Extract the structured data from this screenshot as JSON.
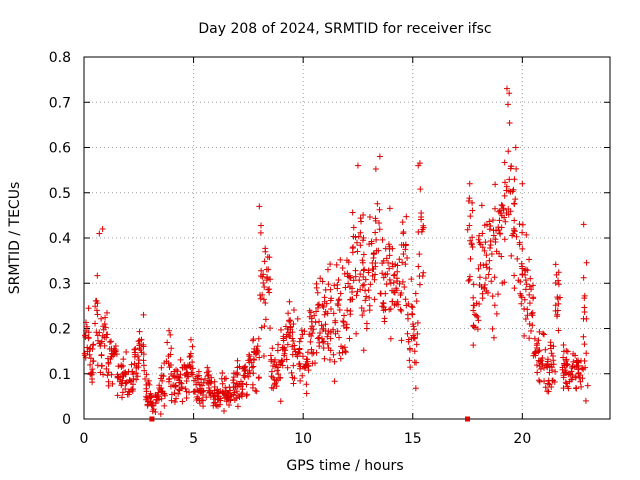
{
  "chart_data": {
    "type": "scatter",
    "title": "Day 208 of 2024, SRMTID for receiver ifsc",
    "xlabel": "GPS time / hours",
    "ylabel": "SRMTID / TECUs",
    "xlim": [
      0,
      24
    ],
    "ylim": [
      0,
      0.8
    ],
    "x_ticks": [
      0,
      5,
      10,
      15,
      20
    ],
    "x_tick_labels": [
      "0",
      "5",
      "10",
      "15",
      "20"
    ],
    "y_ticks": [
      0,
      0.1,
      0.2,
      0.3,
      0.4,
      0.5,
      0.6,
      0.7,
      0.8
    ],
    "y_tick_labels": [
      "0",
      "0.1",
      "0.2",
      "0.3",
      "0.4",
      "0.5",
      "0.6",
      "0.7",
      "0.8"
    ],
    "grid": true,
    "marker": "plus",
    "color": "#e00000",
    "envelope": [
      [
        0.0,
        0.16,
        0.06
      ],
      [
        0.25,
        0.12,
        0.06
      ],
      [
        0.5,
        0.2,
        0.09
      ],
      [
        0.75,
        0.18,
        0.07
      ],
      [
        1.0,
        0.15,
        0.06
      ],
      [
        1.25,
        0.14,
        0.05
      ],
      [
        1.5,
        0.1,
        0.04
      ],
      [
        1.75,
        0.1,
        0.04
      ],
      [
        2.0,
        0.08,
        0.03
      ],
      [
        2.25,
        0.12,
        0.04
      ],
      [
        2.5,
        0.16,
        0.05
      ],
      [
        2.75,
        0.06,
        0.03
      ],
      [
        3.0,
        0.04,
        0.02
      ],
      [
        3.25,
        0.05,
        0.03
      ],
      [
        3.5,
        0.07,
        0.04
      ],
      [
        3.75,
        0.12,
        0.06
      ],
      [
        4.0,
        0.08,
        0.04
      ],
      [
        4.25,
        0.09,
        0.04
      ],
      [
        4.5,
        0.1,
        0.04
      ],
      [
        4.75,
        0.12,
        0.04
      ],
      [
        5.0,
        0.07,
        0.03
      ],
      [
        5.25,
        0.06,
        0.03
      ],
      [
        5.5,
        0.07,
        0.03
      ],
      [
        5.75,
        0.06,
        0.03
      ],
      [
        6.0,
        0.05,
        0.02
      ],
      [
        6.25,
        0.06,
        0.03
      ],
      [
        6.5,
        0.05,
        0.02
      ],
      [
        6.75,
        0.07,
        0.03
      ],
      [
        7.0,
        0.08,
        0.04
      ],
      [
        7.25,
        0.1,
        0.04
      ],
      [
        7.5,
        0.12,
        0.05
      ],
      [
        7.75,
        0.14,
        0.05
      ],
      [
        8.0,
        0.28,
        0.12
      ],
      [
        8.25,
        0.3,
        0.1
      ],
      [
        8.5,
        0.1,
        0.04
      ],
      [
        8.75,
        0.12,
        0.05
      ],
      [
        9.0,
        0.16,
        0.06
      ],
      [
        9.25,
        0.2,
        0.07
      ],
      [
        9.5,
        0.15,
        0.06
      ],
      [
        9.75,
        0.14,
        0.06
      ],
      [
        10.0,
        0.13,
        0.05
      ],
      [
        10.25,
        0.18,
        0.07
      ],
      [
        10.5,
        0.2,
        0.08
      ],
      [
        10.75,
        0.22,
        0.09
      ],
      [
        11.0,
        0.24,
        0.09
      ],
      [
        11.25,
        0.22,
        0.08
      ],
      [
        11.5,
        0.25,
        0.09
      ],
      [
        11.75,
        0.22,
        0.09
      ],
      [
        12.0,
        0.28,
        0.1
      ],
      [
        12.25,
        0.34,
        0.12
      ],
      [
        12.5,
        0.35,
        0.12
      ],
      [
        12.75,
        0.3,
        0.1
      ],
      [
        13.0,
        0.35,
        0.11
      ],
      [
        13.25,
        0.38,
        0.12
      ],
      [
        13.5,
        0.3,
        0.1
      ],
      [
        13.75,
        0.32,
        0.1
      ],
      [
        14.0,
        0.3,
        0.1
      ],
      [
        14.25,
        0.32,
        0.11
      ],
      [
        14.5,
        0.35,
        0.12
      ],
      [
        14.75,
        0.2,
        0.1
      ],
      [
        15.0,
        0.18,
        0.1
      ],
      [
        15.25,
        0.4,
        0.12
      ],
      [
        17.5,
        0.4,
        0.1
      ],
      [
        17.75,
        0.22,
        0.06
      ],
      [
        18.0,
        0.36,
        0.1
      ],
      [
        18.25,
        0.33,
        0.1
      ],
      [
        18.5,
        0.33,
        0.1
      ],
      [
        18.75,
        0.38,
        0.12
      ],
      [
        19.0,
        0.45,
        0.12
      ],
      [
        19.25,
        0.52,
        0.14
      ],
      [
        19.5,
        0.42,
        0.14
      ],
      [
        19.75,
        0.32,
        0.1
      ],
      [
        20.0,
        0.3,
        0.1
      ],
      [
        20.25,
        0.25,
        0.08
      ],
      [
        20.5,
        0.14,
        0.05
      ],
      [
        20.75,
        0.12,
        0.05
      ],
      [
        21.0,
        0.1,
        0.04
      ],
      [
        21.25,
        0.13,
        0.05
      ],
      [
        21.5,
        0.25,
        0.1
      ],
      [
        21.75,
        0.12,
        0.04
      ],
      [
        22.0,
        0.1,
        0.04
      ],
      [
        22.25,
        0.12,
        0.04
      ],
      [
        22.5,
        0.1,
        0.05
      ],
      [
        22.75,
        0.2,
        0.12
      ]
    ],
    "outliers": [
      [
        0.7,
        0.41
      ],
      [
        0.85,
        0.42
      ],
      [
        8.0,
        0.47
      ],
      [
        12.5,
        0.56
      ],
      [
        13.5,
        0.58
      ],
      [
        15.25,
        0.56
      ],
      [
        17.6,
        0.52
      ],
      [
        19.3,
        0.73
      ],
      [
        19.4,
        0.72
      ],
      [
        19.7,
        0.6
      ],
      [
        20.0,
        0.52
      ],
      [
        22.8,
        0.43
      ]
    ],
    "zero_markers": [
      3.1,
      17.5
    ]
  }
}
